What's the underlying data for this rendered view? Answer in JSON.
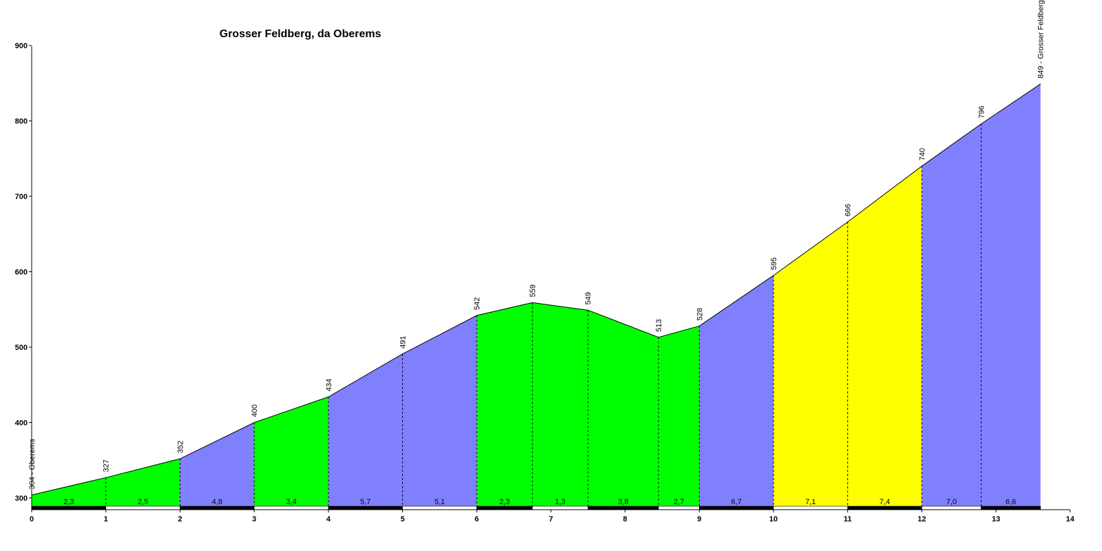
{
  "chart_data": {
    "type": "area",
    "title": "Grosser Feldberg, da Oberems",
    "xlabel": "",
    "ylabel": "",
    "xlim": [
      0,
      14
    ],
    "ylim": [
      300,
      900
    ],
    "x_ticks": [
      "0",
      "1",
      "2",
      "3",
      "4",
      "5",
      "6",
      "7",
      "8",
      "9",
      "10",
      "11",
      "12",
      "13",
      "14"
    ],
    "y_ticks": [
      "300",
      "400",
      "500",
      "600",
      "700",
      "800",
      "900"
    ],
    "points": [
      {
        "x": 0,
        "y": 304,
        "label": "304 - Oberems"
      },
      {
        "x": 1,
        "y": 327,
        "label": "327"
      },
      {
        "x": 2,
        "y": 352,
        "label": "352"
      },
      {
        "x": 3,
        "y": 400,
        "label": "400"
      },
      {
        "x": 4,
        "y": 434,
        "label": "434"
      },
      {
        "x": 5,
        "y": 491,
        "label": "491"
      },
      {
        "x": 6,
        "y": 542,
        "label": "542"
      },
      {
        "x": 6.75,
        "y": 559,
        "label": "559"
      },
      {
        "x": 7.5,
        "y": 549,
        "label": "549"
      },
      {
        "x": 8.45,
        "y": 513,
        "label": "513"
      },
      {
        "x": 9,
        "y": 528,
        "label": "528"
      },
      {
        "x": 10,
        "y": 595,
        "label": "595"
      },
      {
        "x": 11,
        "y": 666,
        "label": "666"
      },
      {
        "x": 12,
        "y": 740,
        "label": "740"
      },
      {
        "x": 12.8,
        "y": 796,
        "label": "796"
      },
      {
        "x": 13.6,
        "y": 849,
        "label": "849 - Grosser Feldberg"
      }
    ],
    "segments": [
      {
        "gradient": "2,3",
        "color": "#00ff00"
      },
      {
        "gradient": "2,5",
        "color": "#00ff00"
      },
      {
        "gradient": "4,8",
        "color": "#8080ff"
      },
      {
        "gradient": "3,4",
        "color": "#00ff00"
      },
      {
        "gradient": "5,7",
        "color": "#8080ff"
      },
      {
        "gradient": "5,1",
        "color": "#8080ff"
      },
      {
        "gradient": "2,3",
        "color": "#00ff00"
      },
      {
        "gradient": "1,3",
        "color": "#00ff00"
      },
      {
        "gradient": "3,8",
        "color": "#00ff00"
      },
      {
        "gradient": "2,7",
        "color": "#00ff00"
      },
      {
        "gradient": "6,7",
        "color": "#8080ff"
      },
      {
        "gradient": "7,1",
        "color": "#ffff00"
      },
      {
        "gradient": "7,4",
        "color": "#ffff00"
      },
      {
        "gradient": "7,0",
        "color": "#8080ff"
      },
      {
        "gradient": "6,6",
        "color": "#8080ff"
      }
    ]
  }
}
